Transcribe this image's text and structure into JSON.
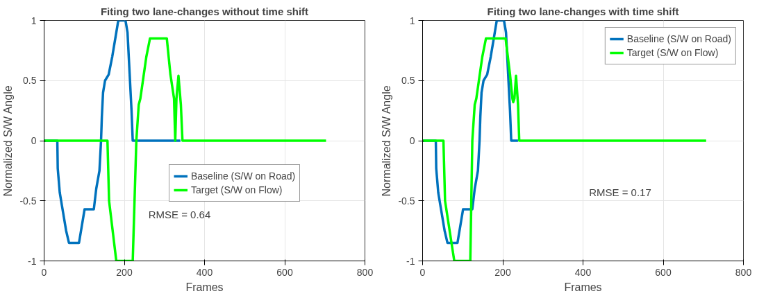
{
  "chart_data": [
    {
      "type": "line",
      "title": "Fiting two lane-changes without time shift",
      "xlabel": "Frames",
      "ylabel": "Normalized S/W Angle",
      "xlim": [
        0,
        800
      ],
      "xticks": [
        0,
        200,
        400,
        600,
        800
      ],
      "ylim": [
        -1,
        1
      ],
      "yticks": [
        -1,
        -0.5,
        0,
        0.5,
        1
      ],
      "grid": true,
      "legend": "right",
      "line_style": "solid",
      "marker": "none",
      "annotations": [
        "RMSE = 0.64"
      ],
      "series": [
        {
          "name": "Baseline (S/W on Road)",
          "color": "#0072bd",
          "x": [
            0,
            33,
            34,
            39,
            45,
            55,
            62,
            87,
            101,
            124,
            130,
            138,
            142,
            144,
            147,
            152,
            161,
            170,
            180,
            185,
            203,
            208,
            218,
            221,
            340
          ],
          "values": [
            0,
            0,
            -0.23,
            -0.43,
            -0.55,
            -0.75,
            -0.85,
            -0.85,
            -0.57,
            -0.57,
            -0.4,
            -0.25,
            0,
            0.2,
            0.4,
            0.5,
            0.55,
            0.7,
            0.9,
            1,
            1,
            0.9,
            0.25,
            0,
            0
          ]
        },
        {
          "name": "Target (S/W on Flow)",
          "color": "#00ff00",
          "x": [
            0,
            158,
            162,
            180,
            221,
            230,
            236,
            240,
            255,
            264,
            306,
            315,
            324,
            327,
            330,
            335,
            341,
            345,
            703
          ],
          "values": [
            0,
            0,
            -0.5,
            -1,
            -1,
            0,
            0.3,
            0.35,
            0.7,
            0.85,
            0.85,
            0.55,
            0.35,
            0,
            0.35,
            0.54,
            0.3,
            0,
            0
          ]
        }
      ]
    },
    {
      "type": "line",
      "title": "Fiting two lane-changes with time shift",
      "xlabel": "Frames",
      "ylabel": "Normalized S/W Angle",
      "xlim": [
        0,
        800
      ],
      "xticks": [
        0,
        200,
        400,
        600,
        800
      ],
      "ylim": [
        -1,
        1
      ],
      "yticks": [
        -1,
        -0.5,
        0,
        0.5,
        1
      ],
      "grid": true,
      "legend": "top right",
      "line_style": "solid",
      "marker": "none",
      "annotations": [
        "RMSE = 0.17"
      ],
      "series": [
        {
          "name": "Baseline (S/W on Road)",
          "color": "#0072bd",
          "x": [
            0,
            33,
            34,
            39,
            45,
            55,
            62,
            87,
            101,
            124,
            130,
            138,
            142,
            144,
            147,
            152,
            161,
            170,
            180,
            185,
            203,
            208,
            218,
            221,
            238
          ],
          "values": [
            0,
            0,
            -0.23,
            -0.43,
            -0.55,
            -0.75,
            -0.85,
            -0.85,
            -0.57,
            -0.57,
            -0.4,
            -0.25,
            0,
            0.2,
            0.4,
            0.5,
            0.55,
            0.7,
            0.9,
            1,
            1,
            0.9,
            0.25,
            0,
            0
          ]
        },
        {
          "name": "Target (S/W on Flow)",
          "color": "#00ff00",
          "x": [
            0,
            52,
            56,
            79,
            119,
            124,
            130,
            134,
            149,
            158,
            207,
            218,
            224,
            226,
            229,
            233,
            238,
            241,
            707
          ],
          "values": [
            0,
            0,
            -0.5,
            -1,
            -1,
            0,
            0.3,
            0.35,
            0.7,
            0.85,
            0.85,
            0.55,
            0.35,
            0.32,
            0.35,
            0.54,
            0.3,
            0,
            0
          ]
        }
      ]
    }
  ]
}
